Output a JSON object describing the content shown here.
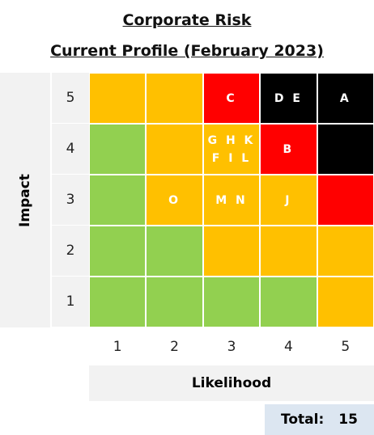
{
  "title": "Corporate Risk",
  "subtitle": "Current Profile (February 2023)",
  "y_label": "Impact",
  "x_label": "Likelihood",
  "x_values": [
    "1",
    "2",
    "3",
    "4",
    "5"
  ],
  "rows": [
    {
      "impact": "5",
      "cells": [
        {
          "color": "#ffc000"
        },
        {
          "color": "#ffc000"
        },
        {
          "color": "#ff0000",
          "label": [
            "C"
          ]
        },
        {
          "color": "#000000",
          "label": [
            "D E"
          ]
        },
        {
          "color": "#000000",
          "label": [
            "A"
          ]
        }
      ]
    },
    {
      "impact": "4",
      "cells": [
        {
          "color": "#92d050"
        },
        {
          "color": "#ffc000"
        },
        {
          "color": "#ffc000",
          "label": [
            "G H K",
            "F I L"
          ]
        },
        {
          "color": "#ff0000",
          "label": [
            "B"
          ]
        },
        {
          "color": "#000000"
        }
      ]
    },
    {
      "impact": "3",
      "cells": [
        {
          "color": "#92d050"
        },
        {
          "color": "#ffc000",
          "label": [
            "O"
          ]
        },
        {
          "color": "#ffc000",
          "label": [
            "M N"
          ]
        },
        {
          "color": "#ffc000",
          "label": [
            "J"
          ]
        },
        {
          "color": "#ff0000"
        }
      ]
    },
    {
      "impact": "2",
      "cells": [
        {
          "color": "#92d050"
        },
        {
          "color": "#92d050"
        },
        {
          "color": "#ffc000"
        },
        {
          "color": "#ffc000"
        },
        {
          "color": "#ffc000"
        }
      ]
    },
    {
      "impact": "1",
      "cells": [
        {
          "color": "#92d050"
        },
        {
          "color": "#92d050"
        },
        {
          "color": "#92d050"
        },
        {
          "color": "#92d050"
        },
        {
          "color": "#ffc000"
        }
      ]
    }
  ],
  "total": {
    "label": "Total:",
    "value": 15
  }
}
